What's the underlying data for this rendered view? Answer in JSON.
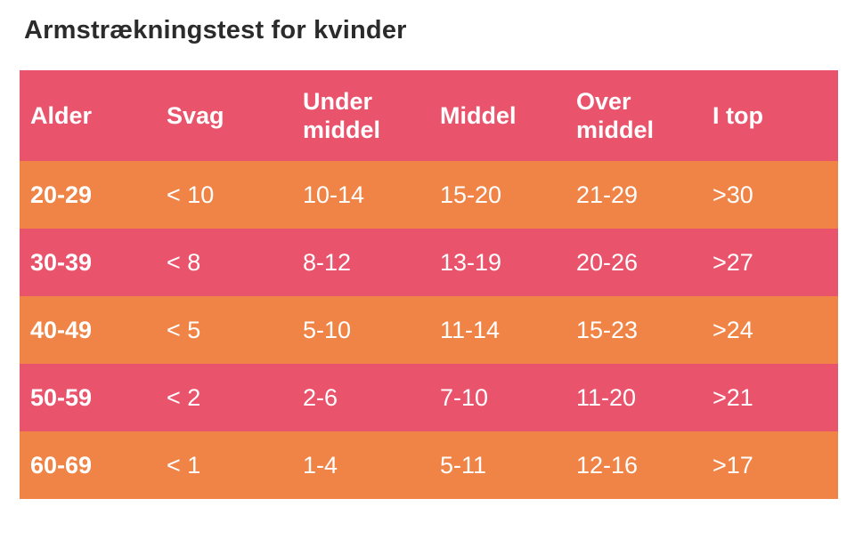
{
  "title": "Armstrækningstest for kvinder",
  "colors": {
    "pink": "#e9536c",
    "orange": "#ef8446",
    "text": "#ffffff",
    "title": "#2b2b2b"
  },
  "header": {
    "alder": "Alder",
    "svag": "Svag",
    "under_1": "Under",
    "under_2": "middel",
    "middel": "Middel",
    "over_1": "Over",
    "over_2": "middel",
    "i_top": "I top"
  },
  "rows": [
    [
      "20-29",
      "< 10",
      "10-14",
      "15-20",
      "21-29",
      ">30"
    ],
    [
      "30-39",
      "< 8",
      "8-12",
      "13-19",
      "20-26",
      ">27"
    ],
    [
      "40-49",
      "< 5",
      "5-10",
      "11-14",
      "15-23",
      ">24"
    ],
    [
      "50-59",
      "< 2",
      "2-6",
      "7-10",
      "11-20",
      ">21"
    ],
    [
      "60-69",
      "< 1",
      "1-4",
      "5-11",
      "12-16",
      ">17"
    ]
  ]
}
